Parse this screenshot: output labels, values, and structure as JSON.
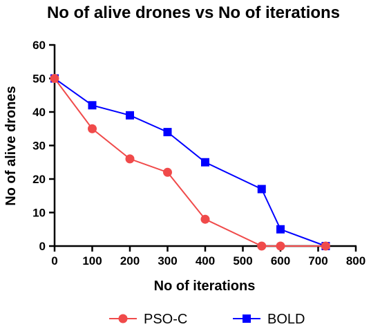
{
  "chart_data": {
    "type": "line",
    "title": "No of alive drones vs No of iterations",
    "xlabel": "No of iterations",
    "ylabel": "No of alive drones",
    "xlim": [
      0,
      800
    ],
    "ylim": [
      0,
      60
    ],
    "x_ticks": [
      "0",
      "100",
      "200",
      "300",
      "400",
      "500",
      "600",
      "700",
      "800"
    ],
    "y_ticks": [
      "0",
      "10",
      "20",
      "30",
      "40",
      "50",
      "60"
    ],
    "grid": false,
    "legend_position": "bottom",
    "series": [
      {
        "name": "PSO-C",
        "color": "#f04a4a",
        "marker": "circle",
        "x": [
          0,
          100,
          200,
          300,
          400,
          550,
          600,
          720
        ],
        "y": [
          50,
          35,
          26,
          22,
          8,
          0,
          0,
          0
        ]
      },
      {
        "name": "BOLD",
        "color": "#0000ff",
        "marker": "square",
        "x": [
          0,
          100,
          200,
          300,
          400,
          550,
          600,
          720
        ],
        "y": [
          50,
          42,
          39,
          34,
          25,
          17,
          5,
          0
        ]
      }
    ]
  }
}
